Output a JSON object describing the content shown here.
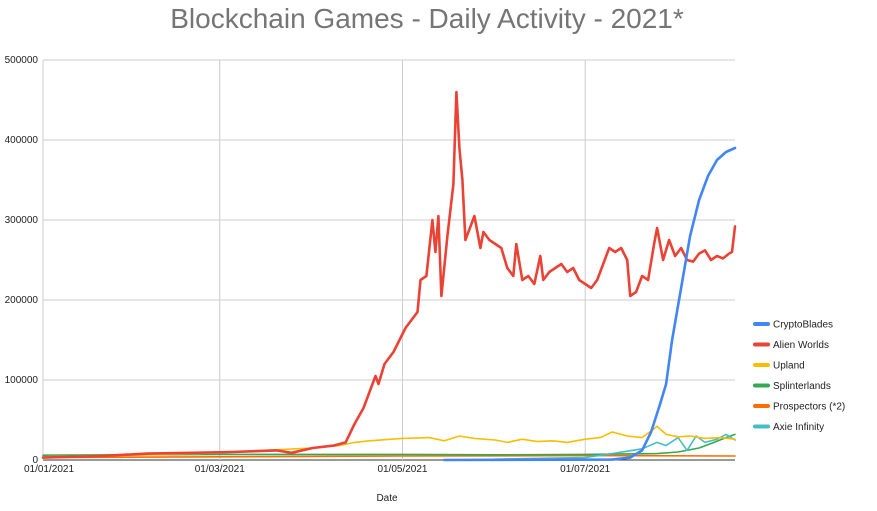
{
  "chart_data": {
    "type": "line",
    "title": "Blockchain Games - Daily Activity - 2021*",
    "xlabel": "Date",
    "ylabel": "",
    "x_ticks": [
      "01/01/2021",
      "01/03/2021",
      "01/05/2021",
      "01/07/2021"
    ],
    "y_ticks": [
      "0",
      "100000",
      "200000",
      "300000",
      "400000",
      "500000"
    ],
    "ylim": [
      0,
      500000
    ],
    "xlim": [
      "2021-01-01",
      "2021-08-20"
    ],
    "grid": true,
    "legend_position": "right",
    "series": [
      {
        "name": "CryptoBlades",
        "color": "#4285f4",
        "points": [
          [
            "2021-05-15",
            0
          ],
          [
            "2021-07-10",
            500
          ],
          [
            "2021-07-16",
            3000
          ],
          [
            "2021-07-20",
            12000
          ],
          [
            "2021-07-23",
            35000
          ],
          [
            "2021-07-26",
            70000
          ],
          [
            "2021-07-28",
            95000
          ],
          [
            "2021-07-30",
            150000
          ],
          [
            "2021-08-02",
            215000
          ],
          [
            "2021-08-05",
            280000
          ],
          [
            "2021-08-08",
            325000
          ],
          [
            "2021-08-11",
            355000
          ],
          [
            "2021-08-14",
            375000
          ],
          [
            "2021-08-17",
            385000
          ],
          [
            "2021-08-20",
            390000
          ]
        ]
      },
      {
        "name": "Alien Worlds",
        "color": "#ea4335",
        "points": [
          [
            "2021-01-01",
            3000
          ],
          [
            "2021-01-20",
            5000
          ],
          [
            "2021-02-05",
            8000
          ],
          [
            "2021-02-20",
            9000
          ],
          [
            "2021-03-05",
            10000
          ],
          [
            "2021-03-20",
            12000
          ],
          [
            "2021-03-25",
            9000
          ],
          [
            "2021-04-01",
            15000
          ],
          [
            "2021-04-08",
            18000
          ],
          [
            "2021-04-12",
            22000
          ],
          [
            "2021-04-15",
            45000
          ],
          [
            "2021-04-18",
            65000
          ],
          [
            "2021-04-20",
            85000
          ],
          [
            "2021-04-22",
            105000
          ],
          [
            "2021-04-23",
            95000
          ],
          [
            "2021-04-25",
            120000
          ],
          [
            "2021-04-28",
            135000
          ],
          [
            "2021-04-30",
            150000
          ],
          [
            "2021-05-02",
            165000
          ],
          [
            "2021-05-04",
            175000
          ],
          [
            "2021-05-06",
            185000
          ],
          [
            "2021-05-07",
            225000
          ],
          [
            "2021-05-09",
            230000
          ],
          [
            "2021-05-11",
            300000
          ],
          [
            "2021-05-12",
            260000
          ],
          [
            "2021-05-13",
            305000
          ],
          [
            "2021-05-14",
            205000
          ],
          [
            "2021-05-16",
            280000
          ],
          [
            "2021-05-18",
            345000
          ],
          [
            "2021-05-19",
            460000
          ],
          [
            "2021-05-20",
            390000
          ],
          [
            "2021-05-21",
            350000
          ],
          [
            "2021-05-22",
            275000
          ],
          [
            "2021-05-24",
            295000
          ],
          [
            "2021-05-25",
            305000
          ],
          [
            "2021-05-27",
            265000
          ],
          [
            "2021-05-28",
            285000
          ],
          [
            "2021-05-30",
            275000
          ],
          [
            "2021-06-01",
            270000
          ],
          [
            "2021-06-03",
            265000
          ],
          [
            "2021-06-05",
            240000
          ],
          [
            "2021-06-07",
            230000
          ],
          [
            "2021-06-08",
            270000
          ],
          [
            "2021-06-10",
            225000
          ],
          [
            "2021-06-12",
            230000
          ],
          [
            "2021-06-14",
            220000
          ],
          [
            "2021-06-16",
            255000
          ],
          [
            "2021-06-17",
            225000
          ],
          [
            "2021-06-19",
            235000
          ],
          [
            "2021-06-21",
            240000
          ],
          [
            "2021-06-23",
            245000
          ],
          [
            "2021-06-25",
            235000
          ],
          [
            "2021-06-27",
            240000
          ],
          [
            "2021-06-29",
            225000
          ],
          [
            "2021-07-01",
            220000
          ],
          [
            "2021-07-03",
            215000
          ],
          [
            "2021-07-05",
            225000
          ],
          [
            "2021-07-07",
            245000
          ],
          [
            "2021-07-09",
            265000
          ],
          [
            "2021-07-11",
            260000
          ],
          [
            "2021-07-13",
            265000
          ],
          [
            "2021-07-15",
            250000
          ],
          [
            "2021-07-16",
            205000
          ],
          [
            "2021-07-18",
            210000
          ],
          [
            "2021-07-20",
            230000
          ],
          [
            "2021-07-22",
            225000
          ],
          [
            "2021-07-24",
            270000
          ],
          [
            "2021-07-25",
            290000
          ],
          [
            "2021-07-27",
            250000
          ],
          [
            "2021-07-29",
            275000
          ],
          [
            "2021-07-31",
            255000
          ],
          [
            "2021-08-02",
            265000
          ],
          [
            "2021-08-04",
            250000
          ],
          [
            "2021-08-06",
            248000
          ],
          [
            "2021-08-08",
            258000
          ],
          [
            "2021-08-10",
            262000
          ],
          [
            "2021-08-12",
            250000
          ],
          [
            "2021-08-14",
            255000
          ],
          [
            "2021-08-16",
            252000
          ],
          [
            "2021-08-18",
            258000
          ],
          [
            "2021-08-19",
            260000
          ],
          [
            "2021-08-20",
            292000
          ]
        ]
      },
      {
        "name": "Upland",
        "color": "#fbbc04",
        "points": [
          [
            "2021-01-01",
            4000
          ],
          [
            "2021-02-01",
            6000
          ],
          [
            "2021-03-01",
            9000
          ],
          [
            "2021-03-15",
            12000
          ],
          [
            "2021-04-01",
            15000
          ],
          [
            "2021-04-10",
            18000
          ],
          [
            "2021-04-15",
            22000
          ],
          [
            "2021-04-20",
            24000
          ],
          [
            "2021-05-01",
            27000
          ],
          [
            "2021-05-10",
            28000
          ],
          [
            "2021-05-15",
            24000
          ],
          [
            "2021-05-20",
            30000
          ],
          [
            "2021-05-25",
            27000
          ],
          [
            "2021-06-01",
            25000
          ],
          [
            "2021-06-05",
            22000
          ],
          [
            "2021-06-10",
            26000
          ],
          [
            "2021-06-15",
            23000
          ],
          [
            "2021-06-20",
            24000
          ],
          [
            "2021-06-25",
            22000
          ],
          [
            "2021-07-01",
            26000
          ],
          [
            "2021-07-06",
            28000
          ],
          [
            "2021-07-10",
            35000
          ],
          [
            "2021-07-15",
            30000
          ],
          [
            "2021-07-20",
            28000
          ],
          [
            "2021-07-25",
            42000
          ],
          [
            "2021-07-28",
            32000
          ],
          [
            "2021-08-01",
            29000
          ],
          [
            "2021-08-05",
            30000
          ],
          [
            "2021-08-10",
            27000
          ],
          [
            "2021-08-15",
            28000
          ],
          [
            "2021-08-20",
            26000
          ]
        ]
      },
      {
        "name": "Splinterlands",
        "color": "#34a853",
        "points": [
          [
            "2021-01-01",
            6000
          ],
          [
            "2021-02-01",
            6500
          ],
          [
            "2021-03-01",
            7000
          ],
          [
            "2021-04-01",
            7000
          ],
          [
            "2021-05-01",
            7000
          ],
          [
            "2021-06-01",
            6500
          ],
          [
            "2021-07-01",
            7000
          ],
          [
            "2021-07-25",
            8000
          ],
          [
            "2021-08-01",
            10000
          ],
          [
            "2021-08-08",
            15000
          ],
          [
            "2021-08-13",
            22000
          ],
          [
            "2021-08-17",
            28000
          ],
          [
            "2021-08-20",
            32000
          ]
        ]
      },
      {
        "name": "Prospectors (*2)",
        "color": "#ff6d01",
        "points": [
          [
            "2021-01-01",
            3000
          ],
          [
            "2021-03-01",
            4000
          ],
          [
            "2021-05-01",
            5000
          ],
          [
            "2021-07-01",
            5500
          ],
          [
            "2021-08-20",
            5000
          ]
        ]
      },
      {
        "name": "Axie Infinity",
        "color": "#46bdc6",
        "points": [
          [
            "2021-06-01",
            1000
          ],
          [
            "2021-07-01",
            3000
          ],
          [
            "2021-07-10",
            8000
          ],
          [
            "2021-07-20",
            14000
          ],
          [
            "2021-07-25",
            22000
          ],
          [
            "2021-07-28",
            18000
          ],
          [
            "2021-08-01",
            28000
          ],
          [
            "2021-08-04",
            12000
          ],
          [
            "2021-08-07",
            30000
          ],
          [
            "2021-08-10",
            22000
          ],
          [
            "2021-08-14",
            26000
          ],
          [
            "2021-08-17",
            32000
          ],
          [
            "2021-08-20",
            25000
          ]
        ]
      }
    ]
  }
}
